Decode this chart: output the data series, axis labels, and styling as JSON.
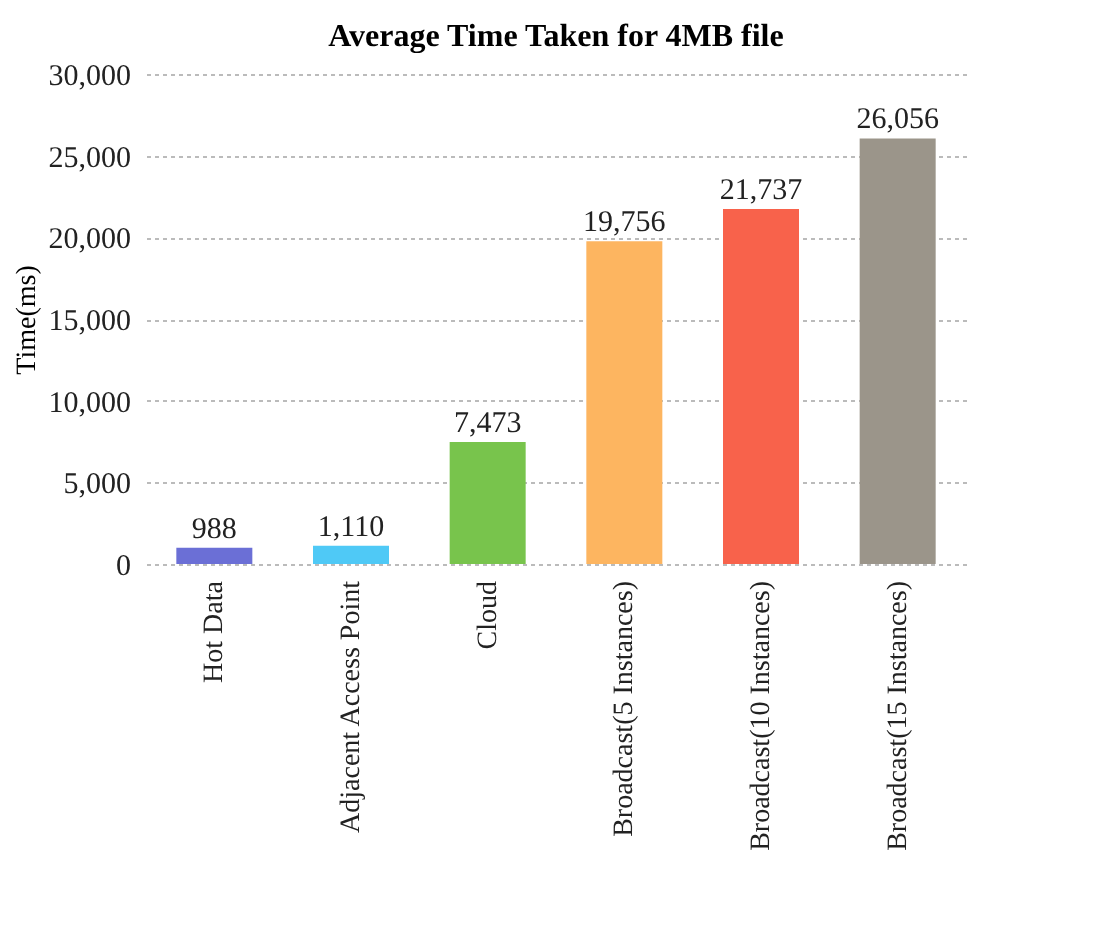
{
  "chart_data": {
    "type": "bar",
    "title": "Average Time Taken for 4MB file",
    "ylabel": "Time(ms)",
    "categories": [
      "Hot Data",
      "Adjacent Access Point",
      "Cloud",
      "Broadcast(5 Instances)",
      "Broadcast(10 Instances)",
      "Broadcast(15 Instances)"
    ],
    "values": [
      988,
      1110,
      7473,
      19756,
      21737,
      26056
    ],
    "colors": [
      "#6b6fd6",
      "#4fc9f6",
      "#78c44c",
      "#fdb560",
      "#f8624b",
      "#9b958a"
    ],
    "value_labels": [
      "988",
      "1,110",
      "7,473",
      "19,756",
      "21,737",
      "26,056"
    ],
    "ylim": [
      0,
      30000
    ],
    "yticks": [
      0,
      {
        "value": 5000,
        "label": "5,000"
      },
      {
        "value": 10000,
        "label": "10,000"
      },
      {
        "value": 15000,
        "label": "15,000"
      },
      {
        "value": 20000,
        "label": "20,000"
      },
      {
        "value": 25000,
        "label": "25,000"
      },
      {
        "value": 30000,
        "label": "30,000"
      }
    ],
    "grid": "y"
  }
}
